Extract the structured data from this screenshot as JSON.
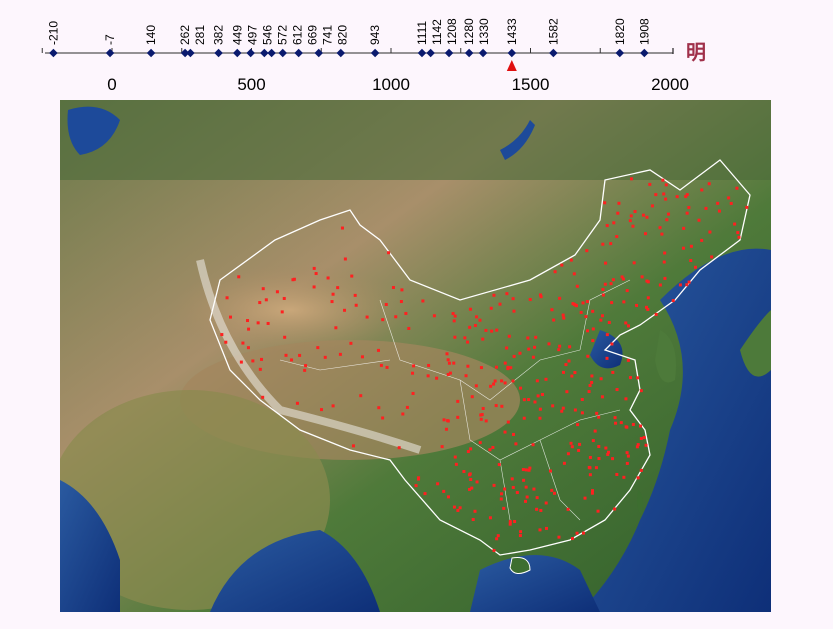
{
  "timeline": {
    "events": [
      -210,
      -7,
      140,
      262,
      281,
      382,
      449,
      497,
      546,
      572,
      612,
      669,
      741,
      820,
      943,
      1111,
      1142,
      1208,
      1280,
      1330,
      1433,
      1582,
      1820,
      1908
    ],
    "axis_labels": [
      "0",
      "500",
      "1000",
      "1500",
      "2000"
    ],
    "axis_values": [
      0,
      500,
      1000,
      1500,
      2000
    ],
    "tick_step": 250,
    "range": [
      -250,
      2000
    ],
    "current_year": 1433,
    "era_label": "明",
    "colors": {
      "marker": "#0a1a6e",
      "pointer": "#e01010",
      "era": "#a0304a"
    }
  },
  "map": {
    "dot_color": "#ff2020",
    "border_color": "#ffffff"
  }
}
